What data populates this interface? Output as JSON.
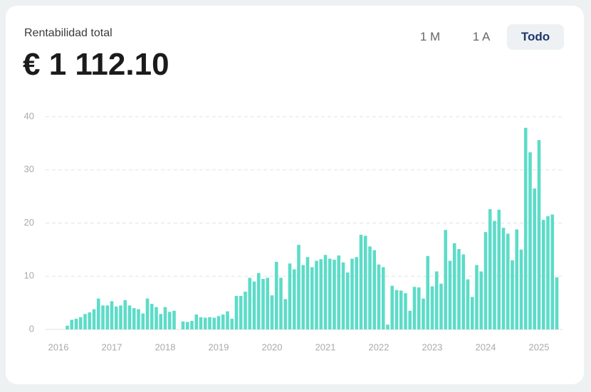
{
  "header": {
    "title": "Rentabilidad total",
    "value": "€ 1 112.10"
  },
  "range_buttons": [
    {
      "label": "1 M",
      "active": false
    },
    {
      "label": "1 A",
      "active": false
    },
    {
      "label": "Todo",
      "active": true
    }
  ],
  "chart_data": {
    "type": "bar",
    "color": "#5ddcc8",
    "grid": true,
    "ylim": [
      0,
      40
    ],
    "yticks": [
      0,
      10,
      20,
      30,
      40
    ],
    "categories": [
      "2016",
      null,
      null,
      null,
      null,
      null,
      null,
      null,
      null,
      null,
      null,
      null,
      "2017",
      null,
      null,
      null,
      null,
      null,
      null,
      null,
      null,
      null,
      null,
      null,
      "2018",
      null,
      null,
      null,
      null,
      null,
      null,
      null,
      null,
      null,
      null,
      null,
      "2019",
      null,
      null,
      null,
      null,
      null,
      null,
      null,
      null,
      null,
      null,
      null,
      "2020",
      null,
      null,
      null,
      null,
      null,
      null,
      null,
      null,
      null,
      null,
      null,
      "2021",
      null,
      null,
      null,
      null,
      null,
      null,
      null,
      null,
      null,
      null,
      null,
      "2022",
      null,
      null,
      null,
      null,
      null,
      null,
      null,
      null,
      null,
      null,
      null,
      "2023",
      null,
      null,
      null,
      null,
      null,
      null,
      null,
      null,
      null,
      null,
      null,
      "2024",
      null,
      null,
      null,
      null,
      null,
      null,
      null,
      null,
      null,
      null,
      null,
      "2025",
      null,
      null,
      null,
      null
    ],
    "values": [
      null,
      null,
      0.7,
      1.8,
      2.0,
      2.3,
      2.9,
      3.2,
      3.8,
      5.8,
      4.5,
      4.5,
      5.3,
      4.3,
      4.5,
      5.5,
      4.5,
      4.0,
      3.8,
      3.0,
      5.8,
      4.8,
      4.2,
      2.9,
      4.2,
      3.3,
      3.5,
      null,
      1.5,
      1.4,
      1.6,
      2.8,
      2.3,
      2.2,
      2.3,
      2.2,
      2.5,
      2.8,
      3.4,
      2.0,
      6.3,
      6.3,
      7.1,
      9.7,
      9.0,
      10.6,
      9.5,
      9.7,
      6.4,
      12.7,
      9.7,
      5.7,
      12.4,
      11.3,
      15.9,
      12.1,
      13.6,
      11.7,
      12.9,
      13.2,
      14.0,
      13.3,
      13.1,
      13.9,
      12.6,
      10.7,
      13.3,
      13.6,
      17.8,
      17.6,
      15.6,
      14.9,
      12.2,
      11.7,
      0.9,
      8.2,
      7.4,
      7.3,
      6.8,
      3.5,
      8.0,
      7.9,
      5.8,
      13.8,
      8.1,
      10.9,
      8.6,
      18.7,
      12.9,
      16.2,
      15.1,
      14.1,
      9.4,
      6.1,
      12.1,
      10.9,
      18.3,
      22.6,
      20.4,
      22.5,
      19.1,
      18.0,
      13.0,
      18.8,
      15.0,
      37.9,
      33.3,
      26.5,
      35.6,
      20.6,
      21.3,
      21.6,
      9.8
    ]
  }
}
